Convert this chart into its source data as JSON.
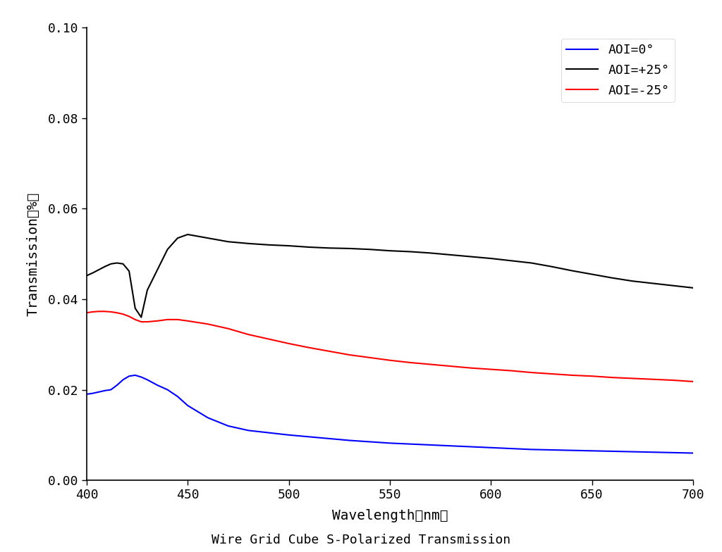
{
  "title": "Wire Grid Cube S-Polarized Transmission",
  "xlabel": "Wavelength（nm）",
  "ylabel": "Transmission（%）",
  "xlim": [
    400,
    700
  ],
  "ylim": [
    0.0,
    0.1
  ],
  "yticks": [
    0.0,
    0.02,
    0.04,
    0.06,
    0.08,
    0.1
  ],
  "xticks": [
    400,
    450,
    500,
    550,
    600,
    650,
    700
  ],
  "legend": [
    {
      "label": "AOI=0°",
      "color": "#0000ff"
    },
    {
      "label": "AOI=+25°",
      "color": "#000000"
    },
    {
      "label": "AOI=-25°",
      "color": "#ff0000"
    }
  ],
  "background_color": "#ffffff",
  "series": {
    "blue": {
      "wavelengths": [
        400,
        403,
        406,
        409,
        412,
        415,
        418,
        421,
        424,
        427,
        430,
        435,
        440,
        445,
        450,
        460,
        470,
        480,
        490,
        500,
        510,
        520,
        530,
        540,
        550,
        560,
        570,
        580,
        590,
        600,
        610,
        620,
        630,
        640,
        650,
        660,
        670,
        680,
        690,
        700
      ],
      "values": [
        0.019,
        0.0192,
        0.0195,
        0.0198,
        0.02,
        0.021,
        0.0222,
        0.023,
        0.0232,
        0.0228,
        0.0222,
        0.021,
        0.02,
        0.0185,
        0.0165,
        0.0138,
        0.012,
        0.011,
        0.0105,
        0.01,
        0.0096,
        0.0092,
        0.0088,
        0.0085,
        0.0082,
        0.008,
        0.0078,
        0.0076,
        0.0074,
        0.0072,
        0.007,
        0.0068,
        0.0067,
        0.0066,
        0.0065,
        0.0064,
        0.0063,
        0.0062,
        0.0061,
        0.006
      ]
    },
    "black": {
      "wavelengths": [
        400,
        403,
        406,
        409,
        412,
        415,
        418,
        421,
        424,
        427,
        430,
        435,
        440,
        445,
        450,
        460,
        470,
        480,
        490,
        500,
        510,
        520,
        530,
        540,
        550,
        560,
        570,
        580,
        590,
        600,
        610,
        620,
        630,
        640,
        650,
        660,
        670,
        680,
        690,
        700
      ],
      "values": [
        0.0452,
        0.0458,
        0.0465,
        0.0472,
        0.0478,
        0.048,
        0.0478,
        0.0462,
        0.038,
        0.036,
        0.042,
        0.0465,
        0.051,
        0.0535,
        0.0543,
        0.0535,
        0.0527,
        0.0523,
        0.052,
        0.0518,
        0.0515,
        0.0513,
        0.0512,
        0.051,
        0.0507,
        0.0505,
        0.0502,
        0.0498,
        0.0494,
        0.049,
        0.0485,
        0.048,
        0.0472,
        0.0463,
        0.0455,
        0.0447,
        0.044,
        0.0435,
        0.043,
        0.0425
      ]
    },
    "red": {
      "wavelengths": [
        400,
        403,
        406,
        409,
        412,
        415,
        418,
        421,
        424,
        427,
        430,
        435,
        440,
        445,
        450,
        460,
        470,
        480,
        490,
        500,
        510,
        520,
        530,
        540,
        550,
        560,
        570,
        580,
        590,
        600,
        610,
        620,
        630,
        640,
        650,
        660,
        670,
        680,
        690,
        700
      ],
      "values": [
        0.037,
        0.0372,
        0.0373,
        0.0373,
        0.0372,
        0.037,
        0.0367,
        0.0362,
        0.0355,
        0.035,
        0.035,
        0.0352,
        0.0355,
        0.0355,
        0.0352,
        0.0345,
        0.0335,
        0.0322,
        0.0312,
        0.0302,
        0.0293,
        0.0285,
        0.0277,
        0.0271,
        0.0265,
        0.026,
        0.0256,
        0.0252,
        0.0248,
        0.0245,
        0.0242,
        0.0238,
        0.0235,
        0.0232,
        0.023,
        0.0227,
        0.0225,
        0.0223,
        0.0221,
        0.0218
      ]
    }
  }
}
